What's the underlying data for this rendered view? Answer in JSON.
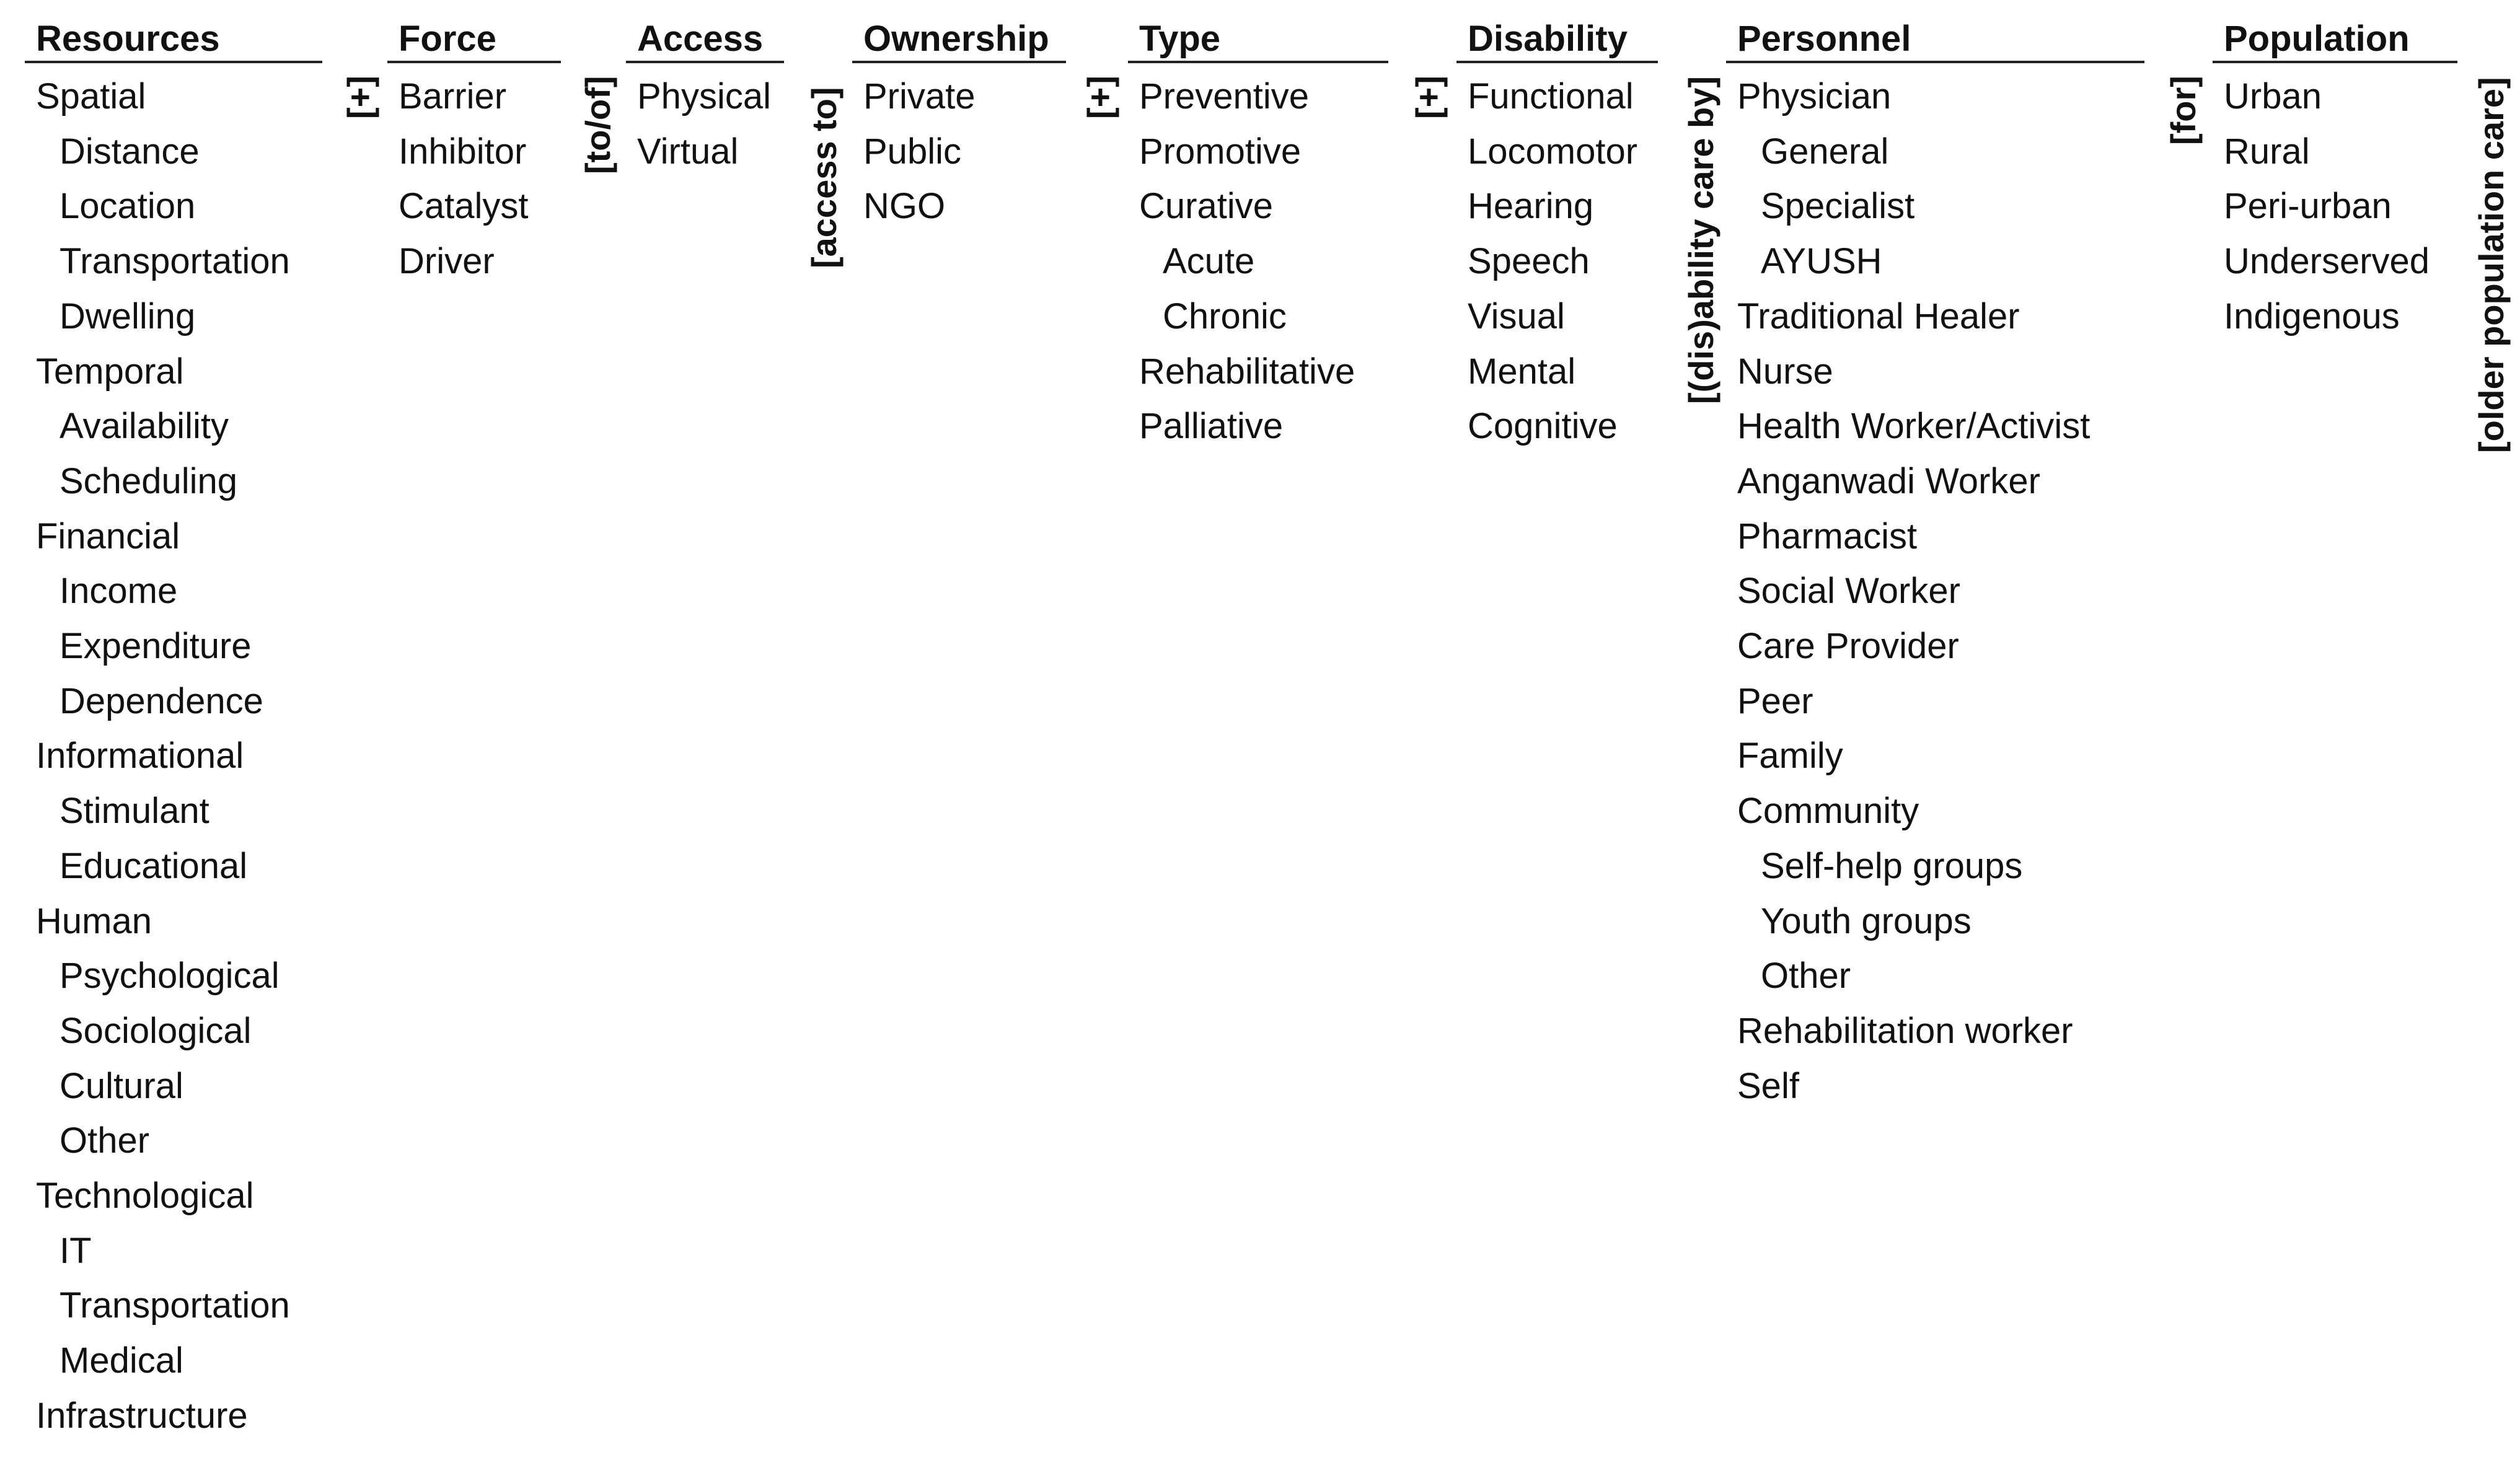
{
  "columns": [
    {
      "title": "Resources",
      "items": [
        {
          "label": "Spatial",
          "level": 0
        },
        {
          "label": "Distance",
          "level": 1
        },
        {
          "label": "Location",
          "level": 1
        },
        {
          "label": "Transportation",
          "level": 1
        },
        {
          "label": "Dwelling",
          "level": 1
        },
        {
          "label": "Temporal",
          "level": 0
        },
        {
          "label": "Availability",
          "level": 1
        },
        {
          "label": "Scheduling",
          "level": 1
        },
        {
          "label": "Financial",
          "level": 0
        },
        {
          "label": "Income",
          "level": 1
        },
        {
          "label": "Expenditure",
          "level": 1
        },
        {
          "label": "Dependence",
          "level": 1
        },
        {
          "label": "Informational",
          "level": 0
        },
        {
          "label": "Stimulant",
          "level": 1
        },
        {
          "label": "Educational",
          "level": 1
        },
        {
          "label": "Human",
          "level": 0
        },
        {
          "label": "Psychological",
          "level": 1
        },
        {
          "label": "Sociological",
          "level": 1
        },
        {
          "label": "Cultural",
          "level": 1
        },
        {
          "label": "Other",
          "level": 1
        },
        {
          "label": "Technological",
          "level": 0
        },
        {
          "label": "IT",
          "level": 1
        },
        {
          "label": "Transportation",
          "level": 1
        },
        {
          "label": "Medical",
          "level": 1
        },
        {
          "label": "Infrastructure",
          "level": 0
        }
      ]
    },
    {
      "title": "Force",
      "items": [
        {
          "label": "Barrier",
          "level": 0
        },
        {
          "label": "Inhibitor",
          "level": 0
        },
        {
          "label": "Catalyst",
          "level": 0
        },
        {
          "label": "Driver",
          "level": 0
        }
      ]
    },
    {
      "title": "Access",
      "items": [
        {
          "label": "Physical",
          "level": 0
        },
        {
          "label": "Virtual",
          "level": 0
        }
      ]
    },
    {
      "title": "Ownership",
      "items": [
        {
          "label": "Private",
          "level": 0
        },
        {
          "label": "Public",
          "level": 0
        },
        {
          "label": "NGO",
          "level": 0
        }
      ]
    },
    {
      "title": "Type",
      "items": [
        {
          "label": "Preventive",
          "level": 0
        },
        {
          "label": "Promotive",
          "level": 0
        },
        {
          "label": "Curative",
          "level": 0
        },
        {
          "label": "Acute",
          "level": 1
        },
        {
          "label": "Chronic",
          "level": 1
        },
        {
          "label": "Rehabilitative",
          "level": 0
        },
        {
          "label": "Palliative",
          "level": 0
        }
      ]
    },
    {
      "title": "Disability",
      "items": [
        {
          "label": "Functional",
          "level": 0
        },
        {
          "label": "Locomotor",
          "level": 0
        },
        {
          "label": "Hearing",
          "level": 0
        },
        {
          "label": "Speech",
          "level": 0
        },
        {
          "label": "Visual",
          "level": 0
        },
        {
          "label": "Mental",
          "level": 0
        },
        {
          "label": "Cognitive",
          "level": 0
        }
      ]
    },
    {
      "title": "Personnel",
      "items": [
        {
          "label": "Physician",
          "level": 0
        },
        {
          "label": "General",
          "level": 1
        },
        {
          "label": "Specialist",
          "level": 1
        },
        {
          "label": "AYUSH",
          "level": 1
        },
        {
          "label": "Traditional Healer",
          "level": 0
        },
        {
          "label": "Nurse",
          "level": 0
        },
        {
          "label": "Health Worker/Activist",
          "level": 0
        },
        {
          "label": "Anganwadi Worker",
          "level": 0
        },
        {
          "label": "Pharmacist",
          "level": 0
        },
        {
          "label": "Social Worker",
          "level": 0
        },
        {
          "label": "Care Provider",
          "level": 0
        },
        {
          "label": "Peer",
          "level": 0
        },
        {
          "label": "Family",
          "level": 0
        },
        {
          "label": "Community",
          "level": 0
        },
        {
          "label": "Self-help groups",
          "level": 1
        },
        {
          "label": "Youth groups",
          "level": 1
        },
        {
          "label": "Other",
          "level": 1
        },
        {
          "label": "Rehabilitation worker",
          "level": 0
        },
        {
          "label": "Self",
          "level": 0
        }
      ]
    },
    {
      "title": "Population",
      "items": [
        {
          "label": "Urban",
          "level": 0
        },
        {
          "label": "Rural",
          "level": 0
        },
        {
          "label": "Peri-urban",
          "level": 0
        },
        {
          "label": "Underserved",
          "level": 0
        },
        {
          "label": "Indigenous",
          "level": 0
        }
      ]
    }
  ],
  "connectors": [
    "[+]",
    "[to/of]",
    "[access to]",
    "[+]",
    "[+]",
    "[(dis)ability care by]",
    "[for]",
    "[older population care]"
  ]
}
